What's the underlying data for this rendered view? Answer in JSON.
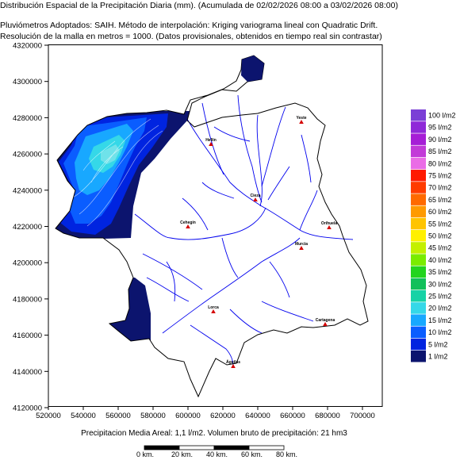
{
  "header": {
    "title": "Distribución Espacial de la Precipitación Diaria (mm). (Acumulada de 02/02/2026 08:00 a 03/02/2026 08:00)",
    "line2": "Pluviómetros Adoptados: SAIH.  Método de interpolación: Kriging variograma lineal con Quadratic Drift.",
    "line3": "Resolución de la malla en metros = 1000. (Datos provisionales, obtenidos en tiempo real sin contrastar)"
  },
  "axes": {
    "y_ticks": [
      "4320000",
      "4300000",
      "4280000",
      "4260000",
      "4240000",
      "4220000",
      "4200000",
      "4180000",
      "4160000",
      "4140000",
      "4120000"
    ],
    "x_ticks": [
      "520000",
      "540000",
      "560000",
      "580000",
      "600000",
      "620000",
      "640000",
      "660000",
      "680000",
      "700000"
    ]
  },
  "cities": [
    "Yeste",
    "Hellín",
    "Cieza",
    "Cehegín",
    "Murcia",
    "Orihuela",
    "Lorca",
    "Cartagena",
    "Águilas"
  ],
  "legend": [
    {
      "label": "100 l/m2",
      "color": "#7b3fd6"
    },
    {
      "label": "95 l/m2",
      "color": "#8f2ad8"
    },
    {
      "label": "90 l/m2",
      "color": "#a61ed6"
    },
    {
      "label": "85 l/m2",
      "color": "#c23ad8"
    },
    {
      "label": "80 l/m2",
      "color": "#ea6ce6"
    },
    {
      "label": "75 l/m2",
      "color": "#ff1a00"
    },
    {
      "label": "70 l/m2",
      "color": "#ff3c00"
    },
    {
      "label": "65 l/m2",
      "color": "#ff6a00"
    },
    {
      "label": "60 l/m2",
      "color": "#ff9a00"
    },
    {
      "label": "55 l/m2",
      "color": "#ffc400"
    },
    {
      "label": "50 l/m2",
      "color": "#fff000"
    },
    {
      "label": "45 l/m2",
      "color": "#c4f000"
    },
    {
      "label": "40 l/m2",
      "color": "#7aec00"
    },
    {
      "label": "35 l/m2",
      "color": "#22d41e"
    },
    {
      "label": "30 l/m2",
      "color": "#11c05a"
    },
    {
      "label": "25 l/m2",
      "color": "#16d2a6"
    },
    {
      "label": "20 l/m2",
      "color": "#35d8e8"
    },
    {
      "label": "15 l/m2",
      "color": "#18a8ff"
    },
    {
      "label": "10 l/m2",
      "color": "#0a5dff"
    },
    {
      "label": "5 l/m2",
      "color": "#0024e0"
    },
    {
      "label": "1 l/m2",
      "color": "#0c146e"
    }
  ],
  "footer": "Precipitacion Media Areal: 1,1 l/m2. Volumen bruto de precipitación: 21 hm3",
  "scale": [
    "0 km.",
    "20 km.",
    "40 km.",
    "60 km.",
    "80 km."
  ],
  "colors": {
    "river": "#0000ee",
    "basin_outline": "#000000",
    "city_marker": "#d40000"
  }
}
